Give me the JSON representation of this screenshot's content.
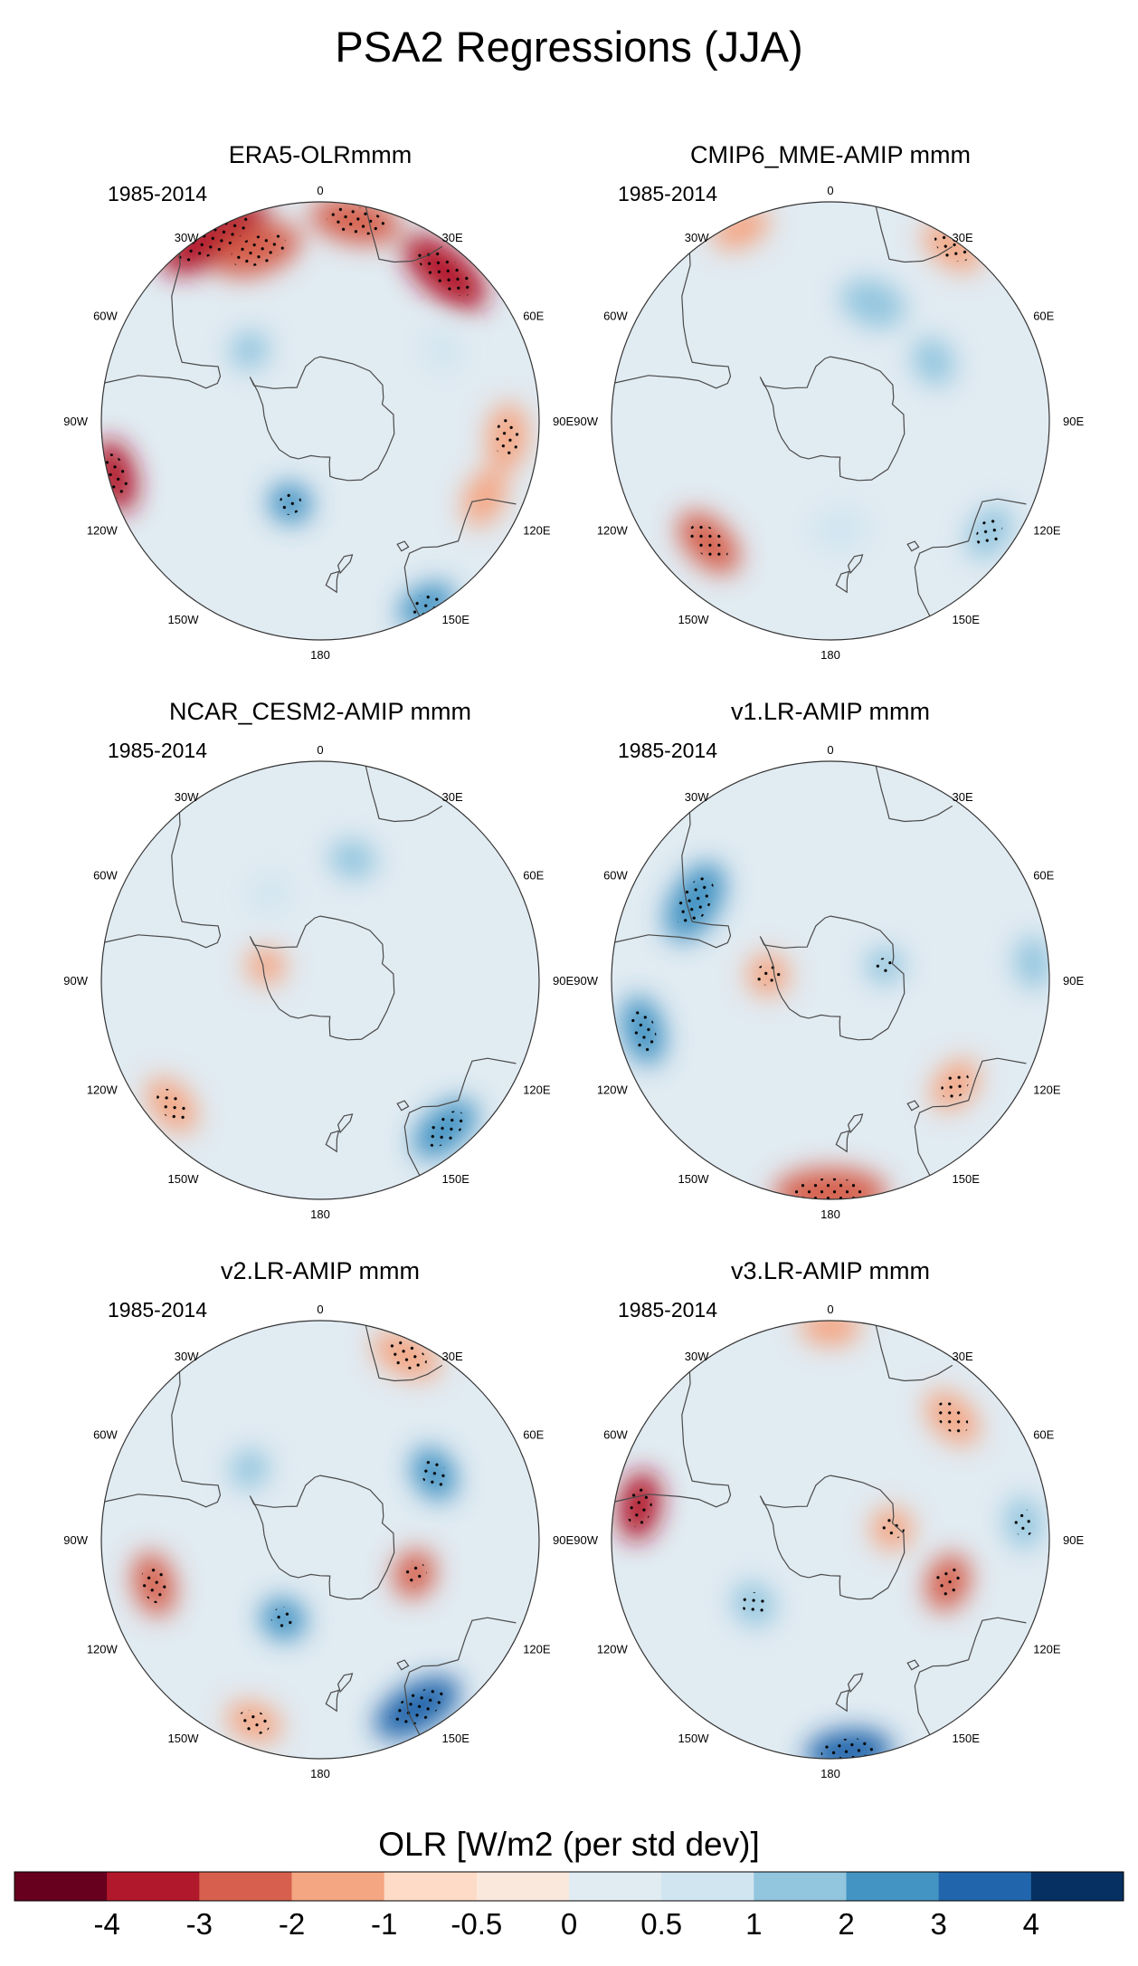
{
  "figure": {
    "title": "PSA2 Regressions (JJA)",
    "colorbar_title": "OLR [W/m2 (per std dev)]"
  },
  "colors": {
    "levels": [
      "#67001f",
      "#b2182b",
      "#d6604d",
      "#f4a582",
      "#fddbc7",
      "#fbe8dd",
      "#e1ebf2",
      "#d1e5f0",
      "#92c5de",
      "#4393c3",
      "#2166ac",
      "#053061"
    ],
    "coast": "#4a4a4a",
    "border": "#333333"
  },
  "chart_data": [
    {
      "type": "polar_map",
      "title": "ERA5-OLRmmm",
      "period": "1985-2014",
      "lon_labels": [
        "0",
        "30E",
        "60E",
        "90E",
        "120E",
        "150E",
        "180",
        "150W",
        "120W",
        "90W",
        "60W",
        "30W"
      ],
      "anomalies": [
        {
          "lon": 330,
          "lat": -22,
          "size": 28,
          "value": -3.2
        },
        {
          "lon": 340,
          "lat": -32,
          "size": 22,
          "value": -2.2
        },
        {
          "lon": 10,
          "lat": -25,
          "size": 20,
          "value": -1.6
        },
        {
          "lon": 40,
          "lat": -28,
          "size": 24,
          "value": -2.6
        },
        {
          "lon": 255,
          "lat": -22,
          "size": 14,
          "value": -3.3
        },
        {
          "lon": 95,
          "lat": -30,
          "size": 14,
          "value": -1.0
        },
        {
          "lon": 115,
          "lat": -32,
          "size": 12,
          "value": -0.8
        },
        {
          "lon": 200,
          "lat": -62,
          "size": 12,
          "value": 1.8
        },
        {
          "lon": 150,
          "lat": -22,
          "size": 10,
          "value": 1.6
        },
        {
          "lon": 315,
          "lat": -58,
          "size": 8,
          "value": 0.8
        },
        {
          "lon": 60,
          "lat": -45,
          "size": 8,
          "value": 0.7
        }
      ]
    },
    {
      "type": "polar_map",
      "title": "CMIP6_MME-AMIP  mmm",
      "period": "1985-2014",
      "lon_labels": [
        "0",
        "30E",
        "60E",
        "90E",
        "120E",
        "150E",
        "180",
        "150W",
        "120W",
        "90W",
        "60W",
        "30W"
      ],
      "anomalies": [
        {
          "lon": 20,
          "lat": -50,
          "size": 20,
          "value": 0.9
        },
        {
          "lon": 60,
          "lat": -52,
          "size": 12,
          "value": 0.8
        },
        {
          "lon": 175,
          "lat": -55,
          "size": 18,
          "value": 0.6
        },
        {
          "lon": 125,
          "lat": -28,
          "size": 10,
          "value": 1.2
        },
        {
          "lon": 225,
          "lat": -35,
          "size": 18,
          "value": -1.6
        },
        {
          "lon": 35,
          "lat": -22,
          "size": 12,
          "value": -1.2
        },
        {
          "lon": 335,
          "lat": -22,
          "size": 10,
          "value": -0.9
        }
      ]
    },
    {
      "type": "polar_map",
      "title": "NCAR_CESM2-AMIP  mmm",
      "period": "1985-2014",
      "lon_labels": [
        "0",
        "30E",
        "60E",
        "90E",
        "120E",
        "150E",
        "180",
        "150W",
        "120W",
        "90W",
        "60W",
        "30W"
      ],
      "anomalies": [
        {
          "lon": 15,
          "lat": -50,
          "size": 10,
          "value": 0.8
        },
        {
          "lon": 140,
          "lat": -28,
          "size": 16,
          "value": 1.6
        },
        {
          "lon": 285,
          "lat": -72,
          "size": 12,
          "value": -0.9
        },
        {
          "lon": 230,
          "lat": -28,
          "size": 12,
          "value": -1.4
        },
        {
          "lon": 330,
          "lat": -58,
          "size": 10,
          "value": 0.6
        }
      ]
    },
    {
      "type": "polar_map",
      "title": "v1.LR-AMIP  mmm",
      "period": "1985-2014",
      "lon_labels": [
        "0",
        "30E",
        "60E",
        "90E",
        "120E",
        "150E",
        "180",
        "150W",
        "120W",
        "90W",
        "60W",
        "30W"
      ],
      "anomalies": [
        {
          "lon": 300,
          "lat": -40,
          "size": 24,
          "value": 1.8
        },
        {
          "lon": 255,
          "lat": -28,
          "size": 14,
          "value": 2.3
        },
        {
          "lon": 275,
          "lat": -70,
          "size": 16,
          "value": -1.4
        },
        {
          "lon": 180,
          "lat": -22,
          "size": 26,
          "value": -2.2
        },
        {
          "lon": 130,
          "lat": -38,
          "size": 12,
          "value": -1.3
        },
        {
          "lon": 75,
          "lat": -72,
          "size": 10,
          "value": 1.2
        },
        {
          "lon": 85,
          "lat": -25,
          "size": 8,
          "value": 0.9
        }
      ]
    },
    {
      "type": "polar_map",
      "title": "v2.LR-AMIP  mmm",
      "period": "1985-2014",
      "lon_labels": [
        "0",
        "30E",
        "60E",
        "90E",
        "120E",
        "150E",
        "180",
        "150W",
        "120W",
        "90W",
        "60W",
        "30W"
      ],
      "anomalies": [
        {
          "lon": 150,
          "lat": -28,
          "size": 22,
          "value": 2.6
        },
        {
          "lon": 60,
          "lat": -48,
          "size": 14,
          "value": 1.8
        },
        {
          "lon": 205,
          "lat": -62,
          "size": 14,
          "value": 1.6
        },
        {
          "lon": 255,
          "lat": -35,
          "size": 14,
          "value": -1.6
        },
        {
          "lon": 110,
          "lat": -58,
          "size": 14,
          "value": -1.6
        },
        {
          "lon": 25,
          "lat": -25,
          "size": 14,
          "value": -1.1
        },
        {
          "lon": 200,
          "lat": -28,
          "size": 10,
          "value": -1.0
        },
        {
          "lon": 315,
          "lat": -58,
          "size": 8,
          "value": 0.8
        }
      ]
    },
    {
      "type": "polar_map",
      "title": "v3.LR-AMIP  mmm",
      "period": "1985-2014",
      "lon_labels": [
        "0",
        "30E",
        "60E",
        "90E",
        "120E",
        "150E",
        "180",
        "150W",
        "120W",
        "90W",
        "60W",
        "30W"
      ],
      "anomalies": [
        {
          "lon": 280,
          "lat": -28,
          "size": 14,
          "value": -3.0
        },
        {
          "lon": 175,
          "lat": -22,
          "size": 18,
          "value": 2.6
        },
        {
          "lon": 80,
          "lat": -70,
          "size": 16,
          "value": -1.4
        },
        {
          "lon": 110,
          "lat": -50,
          "size": 16,
          "value": -1.5
        },
        {
          "lon": 230,
          "lat": -58,
          "size": 12,
          "value": 1.2
        },
        {
          "lon": 45,
          "lat": -35,
          "size": 14,
          "value": -1.2
        },
        {
          "lon": 85,
          "lat": -28,
          "size": 8,
          "value": 1.0
        },
        {
          "lon": 0,
          "lat": -22,
          "size": 10,
          "value": -0.9
        }
      ]
    }
  ],
  "colorbar": {
    "tick_labels": [
      "-4",
      "-3",
      "-2",
      "-1",
      "-0.5",
      "0",
      "0.5",
      "1",
      "2",
      "3",
      "4"
    ]
  }
}
